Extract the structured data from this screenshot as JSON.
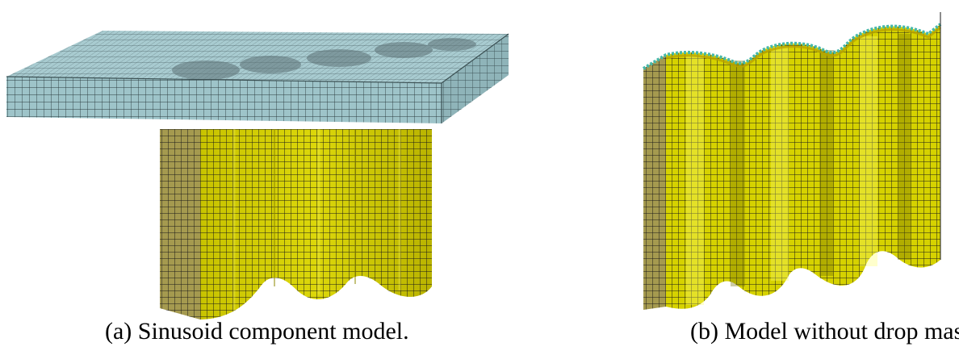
{
  "figure": {
    "panel_a": {
      "caption": "(a) Sinusoid component model.",
      "colors": {
        "plate": "#a4c9cf",
        "plate_side": "#9cc3c8",
        "column_front": "#c9c400",
        "column_side": "#a59a4f",
        "mesh": "#1a1a1a"
      }
    },
    "panel_b": {
      "caption": "(b) Model without drop mass.",
      "colors": {
        "column_front": "#d7d400",
        "column_side": "#a59a4f",
        "mesh": "#1a1a1a",
        "top_edge": "#46b7a9"
      }
    }
  }
}
